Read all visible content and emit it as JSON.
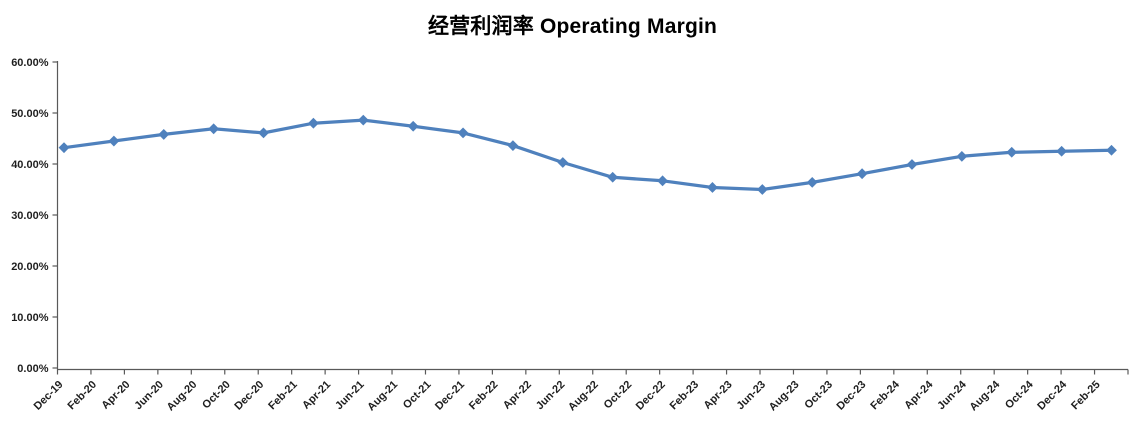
{
  "chart_data": {
    "type": "line",
    "title": "经营利润率 Operating Margin",
    "legend": "none",
    "grid": false,
    "y_axis": {
      "min": 0,
      "max": 60,
      "tick_labels": [
        "60.00%",
        "50.00%",
        "40.00%",
        "30.00%",
        "20.00%",
        "10.00%",
        "0.00%"
      ],
      "tick_values": [
        60,
        50,
        40,
        30,
        20,
        10,
        0
      ]
    },
    "x_axis": {
      "tick_labels": [
        "Dec-19",
        "Feb-20",
        "Apr-20",
        "Jun-20",
        "Aug-20",
        "Oct-20",
        "Dec-20",
        "Feb-21",
        "Apr-21",
        "Jun-21",
        "Aug-21",
        "Oct-21",
        "Dec-21",
        "Feb-22",
        "Apr-22",
        "Jun-22",
        "Aug-22",
        "Oct-22",
        "Dec-22",
        "Feb-23",
        "Apr-23",
        "Jun-23",
        "Aug-23",
        "Oct-23",
        "Dec-23",
        "Feb-24",
        "Apr-24",
        "Jun-24",
        "Aug-24",
        "Oct-24",
        "Dec-24",
        "Feb-25"
      ],
      "label_rotation_deg": 45
    },
    "series": [
      {
        "marker": "diamond",
        "color": "#4F81BD",
        "x": [
          "Dec-19",
          "Mar-20",
          "Jun-20",
          "Sep-20",
          "Dec-20",
          "Mar-21",
          "Jun-21",
          "Sep-21",
          "Dec-21",
          "Mar-22",
          "Jun-22",
          "Sep-22",
          "Dec-22",
          "Mar-23",
          "Jun-23",
          "Sep-23",
          "Dec-23",
          "Mar-24",
          "Jun-24",
          "Sep-24",
          "Dec-24",
          "Mar-25"
        ],
        "values": [
          43.2,
          44.5,
          45.8,
          46.9,
          46.1,
          48.0,
          48.6,
          47.4,
          46.1,
          43.6,
          40.3,
          37.4,
          36.7,
          35.4,
          35.0,
          36.4,
          38.1,
          39.9,
          41.5,
          42.3,
          42.5,
          42.7
        ],
        "values_unit": "%"
      }
    ],
    "colors": {
      "series_blue": "#4F81BD",
      "axis_line": "#595959",
      "tick_text": "#1f1f1f",
      "title_text": "#000000",
      "background": "#ffffff"
    }
  }
}
